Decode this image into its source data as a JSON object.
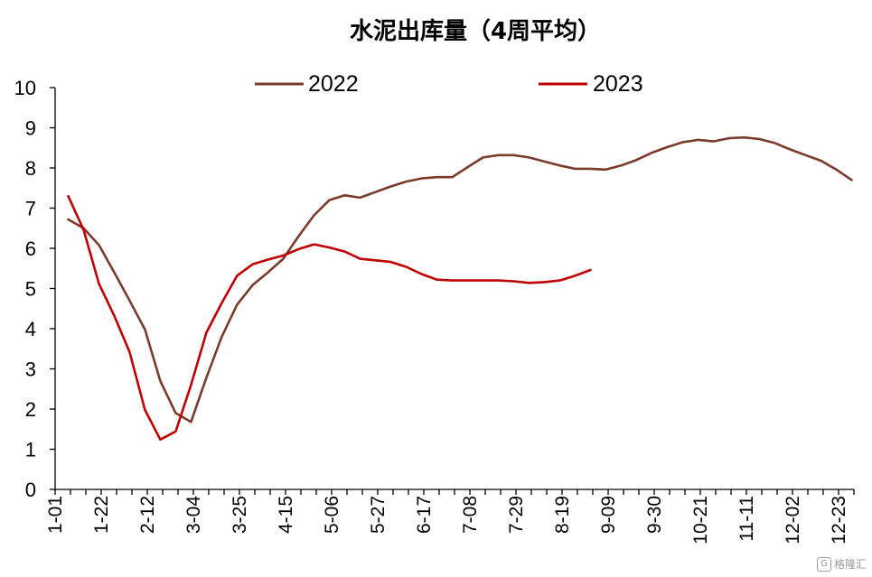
{
  "chart_data": {
    "type": "line",
    "title": "水泥出库量（4周平均）",
    "xlabel": "",
    "ylabel": "",
    "ylim": [
      0,
      10
    ],
    "yticks": [
      "0",
      "1",
      "2",
      "3",
      "4",
      "5",
      "6",
      "7",
      "8",
      "9",
      "10"
    ],
    "x_tick_labels": [
      "1-01",
      "1-22",
      "2-12",
      "3-04",
      "3-25",
      "4-15",
      "5-06",
      "5-27",
      "6-17",
      "7-08",
      "7-29",
      "8-19",
      "9-09",
      "9-30",
      "10-21",
      "11-11",
      "12-02",
      "12-23"
    ],
    "grid": false,
    "legend_position": "top",
    "series": [
      {
        "name": "2022",
        "color": "#7a3b2a",
        "values": [
          6.72,
          6.5,
          6.08,
          5.4,
          4.7,
          3.98,
          2.7,
          1.9,
          1.68,
          2.78,
          3.8,
          4.6,
          5.08,
          5.4,
          5.74,
          6.3,
          6.82,
          7.2,
          7.32,
          7.26,
          7.4,
          7.54,
          7.66,
          7.74,
          7.77,
          7.77,
          8.02,
          8.26,
          8.32,
          8.32,
          8.26,
          8.16,
          8.06,
          7.98,
          7.98,
          7.96,
          8.06,
          8.2,
          8.38,
          8.52,
          8.64,
          8.7,
          8.66,
          8.74,
          8.76,
          8.72,
          8.62,
          8.46,
          8.32,
          8.18,
          7.96,
          7.7
        ]
      },
      {
        "name": "2023",
        "color": "#c00000",
        "values": [
          7.3,
          6.46,
          5.12,
          4.32,
          3.42,
          1.98,
          1.24,
          1.44,
          2.6,
          3.9,
          4.64,
          5.32,
          5.6,
          5.72,
          5.82,
          5.98,
          6.1,
          6.02,
          5.92,
          5.74,
          5.7,
          5.66,
          5.54,
          5.36,
          5.22,
          5.2,
          5.2,
          5.2,
          5.2,
          5.18,
          5.14,
          5.16,
          5.2,
          5.32,
          5.46
        ]
      }
    ]
  },
  "watermark": {
    "icon": "G",
    "text": "格隆汇"
  }
}
